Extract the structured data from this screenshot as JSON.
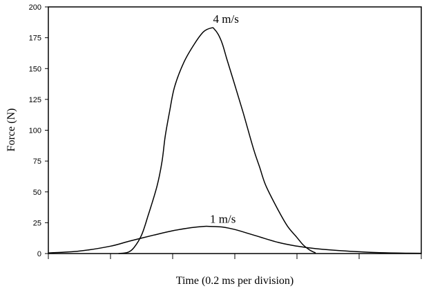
{
  "chart_data": {
    "type": "line",
    "title": "",
    "xlabel": "Time (0.2 ms per division)",
    "ylabel": "Force (N)",
    "xlim": [
      0,
      6
    ],
    "ylim": [
      0,
      200
    ],
    "x_ticks": [
      0,
      1,
      2,
      3,
      4,
      5,
      6
    ],
    "x_tick_labels": [
      "",
      "",
      "",
      "",
      "",
      "",
      ""
    ],
    "y_ticks": [
      0,
      25,
      50,
      75,
      100,
      125,
      150,
      175,
      200
    ],
    "y_tick_labels": [
      "0",
      "25",
      "50",
      "75",
      "100",
      "125",
      "150",
      "175",
      "200"
    ],
    "grid": false,
    "legend": "none",
    "series": [
      {
        "label": "4 m/s",
        "color": "#000000",
        "x": [
          1.13,
          1.28,
          1.38,
          1.5,
          1.6,
          1.75,
          1.83,
          1.88,
          1.95,
          2.03,
          2.18,
          2.35,
          2.5,
          2.63,
          2.67,
          2.73,
          2.8,
          2.87,
          2.98,
          3.13,
          3.3,
          3.4,
          3.5,
          3.7,
          3.85,
          4.0,
          4.1,
          4.2,
          4.3
        ],
        "y": [
          0,
          1,
          5,
          15,
          30,
          55,
          75,
          95,
          115,
          135,
          155,
          170,
          180,
          183,
          182,
          178,
          170,
          158,
          140,
          115,
          85,
          70,
          55,
          35,
          22,
          13,
          7,
          3,
          0.5
        ]
      },
      {
        "label": "1 m/s",
        "color": "#000000",
        "x": [
          0,
          0.5,
          1.0,
          1.3,
          1.7,
          2.0,
          2.3,
          2.5,
          2.6,
          2.8,
          3.0,
          3.3,
          3.7,
          4.0,
          4.3,
          4.8,
          5.3,
          5.8,
          6.0
        ],
        "y": [
          0.5,
          2,
          6,
          10,
          15,
          18.5,
          21,
          22,
          22,
          21.5,
          19.5,
          15,
          9,
          6,
          4,
          2,
          0.8,
          0.3,
          0.2
        ]
      }
    ],
    "annotations": [
      {
        "text": "4 m/s",
        "x": 2.65,
        "y": 187
      },
      {
        "text": "1 m/s",
        "x": 2.6,
        "y": 25
      }
    ]
  }
}
